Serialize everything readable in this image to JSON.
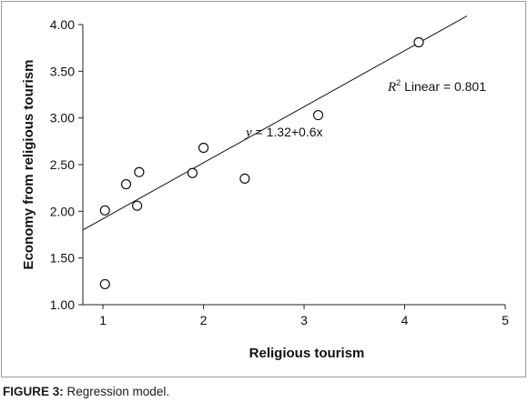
{
  "chart_data": {
    "type": "scatter",
    "title": "",
    "xlabel": "Religious tourism",
    "ylabel": "Economy from religious tourism",
    "xlim": [
      0.8,
      5
    ],
    "ylim": [
      1.0,
      4.0
    ],
    "x_ticks": [
      "1",
      "2",
      "3",
      "4",
      "5"
    ],
    "x_tick_values": [
      1,
      2,
      3,
      4,
      5
    ],
    "y_ticks": [
      "1.00",
      "1.50",
      "2.00",
      "2.50",
      "3.00",
      "3.50",
      "4.00"
    ],
    "y_tick_values": [
      1.0,
      1.5,
      2.0,
      2.5,
      3.0,
      3.5,
      4.0
    ],
    "points": [
      {
        "x": 1.02,
        "y": 2.01
      },
      {
        "x": 1.02,
        "y": 1.22
      },
      {
        "x": 1.23,
        "y": 2.29
      },
      {
        "x": 1.34,
        "y": 2.06
      },
      {
        "x": 1.36,
        "y": 2.42
      },
      {
        "x": 1.89,
        "y": 2.41
      },
      {
        "x": 2.0,
        "y": 2.68
      },
      {
        "x": 2.41,
        "y": 2.35
      },
      {
        "x": 3.14,
        "y": 3.03
      },
      {
        "x": 4.14,
        "y": 3.81
      }
    ],
    "fit_line": {
      "intercept": 1.32,
      "slope": 0.6,
      "x_end": 4.62
    },
    "grid": false,
    "legend": "none",
    "annotations": {
      "equation_italic": "y",
      "equation_rest": " = 1.32+0.6x",
      "r2_italic": "R",
      "r2_sup": "2",
      "r2_rest": " Linear = 0.801"
    }
  },
  "caption": {
    "label": "FIGURE 3:",
    "text": " Regression model."
  }
}
